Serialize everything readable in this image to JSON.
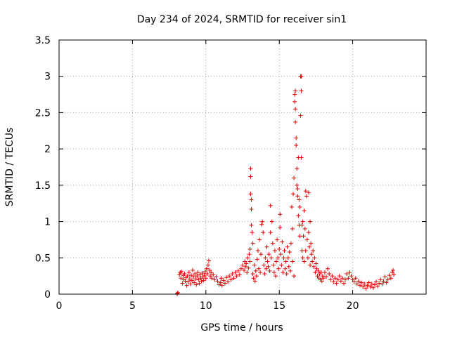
{
  "chart_data": {
    "type": "scatter",
    "title": "Day 234 of 2024, SRMTID for receiver sin1",
    "xlabel": "GPS time / hours",
    "ylabel": "SRMTID / TECUs",
    "xlim": [
      0,
      25
    ],
    "ylim": [
      0,
      3.5
    ],
    "xticks": [
      0,
      5,
      10,
      15,
      20
    ],
    "yticks": [
      0,
      0.5,
      1,
      1.5,
      2,
      2.5,
      3,
      3.5
    ],
    "ytick_labels": [
      "0",
      "0.5",
      "1",
      "1.5",
      "2",
      "2.5",
      "3",
      "3.5"
    ],
    "grid": true,
    "marker": "plus",
    "color": "#e00000",
    "series": [
      {
        "name": "SRMTID",
        "points": [
          [
            8.05,
            0.0
          ],
          [
            8.05,
            0.01
          ],
          [
            8.1,
            0.02
          ],
          [
            8.2,
            0.27
          ],
          [
            8.25,
            0.3
          ],
          [
            8.3,
            0.22
          ],
          [
            8.35,
            0.31
          ],
          [
            8.4,
            0.15
          ],
          [
            8.45,
            0.26
          ],
          [
            8.5,
            0.2
          ],
          [
            8.55,
            0.28
          ],
          [
            8.6,
            0.18
          ],
          [
            8.65,
            0.23
          ],
          [
            8.7,
            0.12
          ],
          [
            8.75,
            0.25
          ],
          [
            8.8,
            0.17
          ],
          [
            8.85,
            0.3
          ],
          [
            8.9,
            0.21
          ],
          [
            8.95,
            0.14
          ],
          [
            9.0,
            0.26
          ],
          [
            9.05,
            0.19
          ],
          [
            9.1,
            0.33
          ],
          [
            9.15,
            0.24
          ],
          [
            9.2,
            0.16
          ],
          [
            9.25,
            0.28
          ],
          [
            9.3,
            0.21
          ],
          [
            9.35,
            0.13
          ],
          [
            9.4,
            0.25
          ],
          [
            9.45,
            0.3
          ],
          [
            9.5,
            0.2
          ],
          [
            9.55,
            0.15
          ],
          [
            9.6,
            0.27
          ],
          [
            9.65,
            0.22
          ],
          [
            9.7,
            0.18
          ],
          [
            9.75,
            0.29
          ],
          [
            9.8,
            0.24
          ],
          [
            9.85,
            0.19
          ],
          [
            9.9,
            0.26
          ],
          [
            9.95,
            0.31
          ],
          [
            10.0,
            0.22
          ],
          [
            10.05,
            0.35
          ],
          [
            10.1,
            0.28
          ],
          [
            10.15,
            0.4
          ],
          [
            10.2,
            0.46
          ],
          [
            10.25,
            0.33
          ],
          [
            10.3,
            0.25
          ],
          [
            10.35,
            0.3
          ],
          [
            10.4,
            0.22
          ],
          [
            10.5,
            0.27
          ],
          [
            10.6,
            0.2
          ],
          [
            10.7,
            0.24
          ],
          [
            10.8,
            0.18
          ],
          [
            10.9,
            0.13
          ],
          [
            11.0,
            0.16
          ],
          [
            11.05,
            0.22
          ],
          [
            11.1,
            0.12
          ],
          [
            11.2,
            0.19
          ],
          [
            11.3,
            0.15
          ],
          [
            11.4,
            0.23
          ],
          [
            11.5,
            0.17
          ],
          [
            11.6,
            0.25
          ],
          [
            11.7,
            0.2
          ],
          [
            11.8,
            0.28
          ],
          [
            11.9,
            0.22
          ],
          [
            12.0,
            0.3
          ],
          [
            12.1,
            0.25
          ],
          [
            12.2,
            0.32
          ],
          [
            12.3,
            0.27
          ],
          [
            12.4,
            0.35
          ],
          [
            12.5,
            0.4
          ],
          [
            12.6,
            0.33
          ],
          [
            12.65,
            0.45
          ],
          [
            12.7,
            0.38
          ],
          [
            12.75,
            0.42
          ],
          [
            12.8,
            0.3
          ],
          [
            12.85,
            0.5
          ],
          [
            12.9,
            0.36
          ],
          [
            12.95,
            0.55
          ],
          [
            13.0,
            0.62
          ],
          [
            13.0,
            0.45
          ],
          [
            13.05,
            1.73
          ],
          [
            13.05,
            1.62
          ],
          [
            13.05,
            1.38
          ],
          [
            13.1,
            1.3
          ],
          [
            13.1,
            1.17
          ],
          [
            13.1,
            0.95
          ],
          [
            13.15,
            0.85
          ],
          [
            13.2,
            0.7
          ],
          [
            13.2,
            0.28
          ],
          [
            13.25,
            0.22
          ],
          [
            13.3,
            0.4
          ],
          [
            13.35,
            0.18
          ],
          [
            13.4,
            0.32
          ],
          [
            13.45,
            0.25
          ],
          [
            13.5,
            0.48
          ],
          [
            13.55,
            0.6
          ],
          [
            13.6,
            0.35
          ],
          [
            13.65,
            0.75
          ],
          [
            13.7,
            0.3
          ],
          [
            13.75,
            0.55
          ],
          [
            13.8,
            0.96
          ],
          [
            13.85,
            1.0
          ],
          [
            13.9,
            0.85
          ],
          [
            13.95,
            0.4
          ],
          [
            14.0,
            0.28
          ],
          [
            14.05,
            0.5
          ],
          [
            14.1,
            0.35
          ],
          [
            14.15,
            0.65
          ],
          [
            14.2,
            0.45
          ],
          [
            14.25,
            0.38
          ],
          [
            14.3,
            0.55
          ],
          [
            14.35,
            0.32
          ],
          [
            14.4,
            0.85
          ],
          [
            14.4,
            1.22
          ],
          [
            14.45,
            0.5
          ],
          [
            14.5,
            1.0
          ],
          [
            14.55,
            0.7
          ],
          [
            14.6,
            0.4
          ],
          [
            14.65,
            0.3
          ],
          [
            14.7,
            0.6
          ],
          [
            14.75,
            0.25
          ],
          [
            14.8,
            0.45
          ],
          [
            14.85,
            0.75
          ],
          [
            14.9,
            0.5
          ],
          [
            14.95,
            0.35
          ],
          [
            15.0,
            0.62
          ],
          [
            15.05,
            1.1
          ],
          [
            15.05,
            0.92
          ],
          [
            15.1,
            0.55
          ],
          [
            15.15,
            0.4
          ],
          [
            15.2,
            0.72
          ],
          [
            15.25,
            0.3
          ],
          [
            15.3,
            0.5
          ],
          [
            15.35,
            0.6
          ],
          [
            15.4,
            0.35
          ],
          [
            15.45,
            0.45
          ],
          [
            15.5,
            0.28
          ],
          [
            15.55,
            0.65
          ],
          [
            15.6,
            0.5
          ],
          [
            15.65,
            0.38
          ],
          [
            15.7,
            0.58
          ],
          [
            15.75,
            0.32
          ],
          [
            15.8,
            0.7
          ],
          [
            15.85,
            1.2
          ],
          [
            15.9,
            0.9
          ],
          [
            15.9,
            0.45
          ],
          [
            15.95,
            1.38
          ],
          [
            16.0,
            1.6
          ],
          [
            16.0,
            0.25
          ],
          [
            16.05,
            2.75
          ],
          [
            16.05,
            2.65
          ],
          [
            16.1,
            2.8
          ],
          [
            16.1,
            2.55
          ],
          [
            16.1,
            2.37
          ],
          [
            16.15,
            2.15
          ],
          [
            16.15,
            2.05
          ],
          [
            16.2,
            1.73
          ],
          [
            16.2,
            1.5
          ],
          [
            16.25,
            1.45
          ],
          [
            16.25,
            1.35
          ],
          [
            16.3,
            1.88
          ],
          [
            16.3,
            1.08
          ],
          [
            16.35,
            1.3
          ],
          [
            16.35,
            0.95
          ],
          [
            16.4,
            1.2
          ],
          [
            16.4,
            0.8
          ],
          [
            16.45,
            3.0
          ],
          [
            16.45,
            2.46
          ],
          [
            16.5,
            3.0
          ],
          [
            16.5,
            2.8
          ],
          [
            16.5,
            1.88
          ],
          [
            16.55,
            0.95
          ],
          [
            16.55,
            0.6
          ],
          [
            16.6,
            1.0
          ],
          [
            16.6,
            0.5
          ],
          [
            16.65,
            0.8
          ],
          [
            16.7,
            1.15
          ],
          [
            16.7,
            0.45
          ],
          [
            16.75,
            0.9
          ],
          [
            16.8,
            1.42
          ],
          [
            16.8,
            0.6
          ],
          [
            16.85,
            1.35
          ],
          [
            16.9,
            0.75
          ],
          [
            16.95,
            0.5
          ],
          [
            17.0,
            1.4
          ],
          [
            17.0,
            0.85
          ],
          [
            17.05,
            0.65
          ],
          [
            17.1,
            1.0
          ],
          [
            17.1,
            0.4
          ],
          [
            17.15,
            0.7
          ],
          [
            17.2,
            0.55
          ],
          [
            17.25,
            0.45
          ],
          [
            17.3,
            0.6
          ],
          [
            17.35,
            0.38
          ],
          [
            17.4,
            0.5
          ],
          [
            17.45,
            0.3
          ],
          [
            17.5,
            0.42
          ],
          [
            17.55,
            0.35
          ],
          [
            17.6,
            0.25
          ],
          [
            17.65,
            0.32
          ],
          [
            17.7,
            0.22
          ],
          [
            17.75,
            0.28
          ],
          [
            17.8,
            0.2
          ],
          [
            17.85,
            0.3
          ],
          [
            17.9,
            0.18
          ],
          [
            17.95,
            0.25
          ],
          [
            18.0,
            0.22
          ],
          [
            18.1,
            0.3
          ],
          [
            18.2,
            0.24
          ],
          [
            18.3,
            0.35
          ],
          [
            18.4,
            0.28
          ],
          [
            18.5,
            0.2
          ],
          [
            18.6,
            0.25
          ],
          [
            18.7,
            0.17
          ],
          [
            18.8,
            0.22
          ],
          [
            18.9,
            0.15
          ],
          [
            19.0,
            0.2
          ],
          [
            19.1,
            0.25
          ],
          [
            19.2,
            0.18
          ],
          [
            19.3,
            0.22
          ],
          [
            19.4,
            0.15
          ],
          [
            19.5,
            0.2
          ],
          [
            19.6,
            0.28
          ],
          [
            19.7,
            0.22
          ],
          [
            19.8,
            0.3
          ],
          [
            19.9,
            0.25
          ],
          [
            20.0,
            0.2
          ],
          [
            20.1,
            0.17
          ],
          [
            20.2,
            0.22
          ],
          [
            20.3,
            0.14
          ],
          [
            20.4,
            0.18
          ],
          [
            20.5,
            0.12
          ],
          [
            20.6,
            0.16
          ],
          [
            20.7,
            0.1
          ],
          [
            20.8,
            0.14
          ],
          [
            20.9,
            0.08
          ],
          [
            21.0,
            0.12
          ],
          [
            21.1,
            0.16
          ],
          [
            21.2,
            0.1
          ],
          [
            21.3,
            0.14
          ],
          [
            21.4,
            0.09
          ],
          [
            21.5,
            0.13
          ],
          [
            21.6,
            0.17
          ],
          [
            21.7,
            0.11
          ],
          [
            21.8,
            0.15
          ],
          [
            21.9,
            0.2
          ],
          [
            22.0,
            0.14
          ],
          [
            22.1,
            0.18
          ],
          [
            22.2,
            0.24
          ],
          [
            22.3,
            0.16
          ],
          [
            22.4,
            0.2
          ],
          [
            22.5,
            0.26
          ],
          [
            22.6,
            0.22
          ],
          [
            22.7,
            0.3
          ],
          [
            22.75,
            0.33
          ],
          [
            22.8,
            0.27
          ]
        ]
      }
    ]
  }
}
